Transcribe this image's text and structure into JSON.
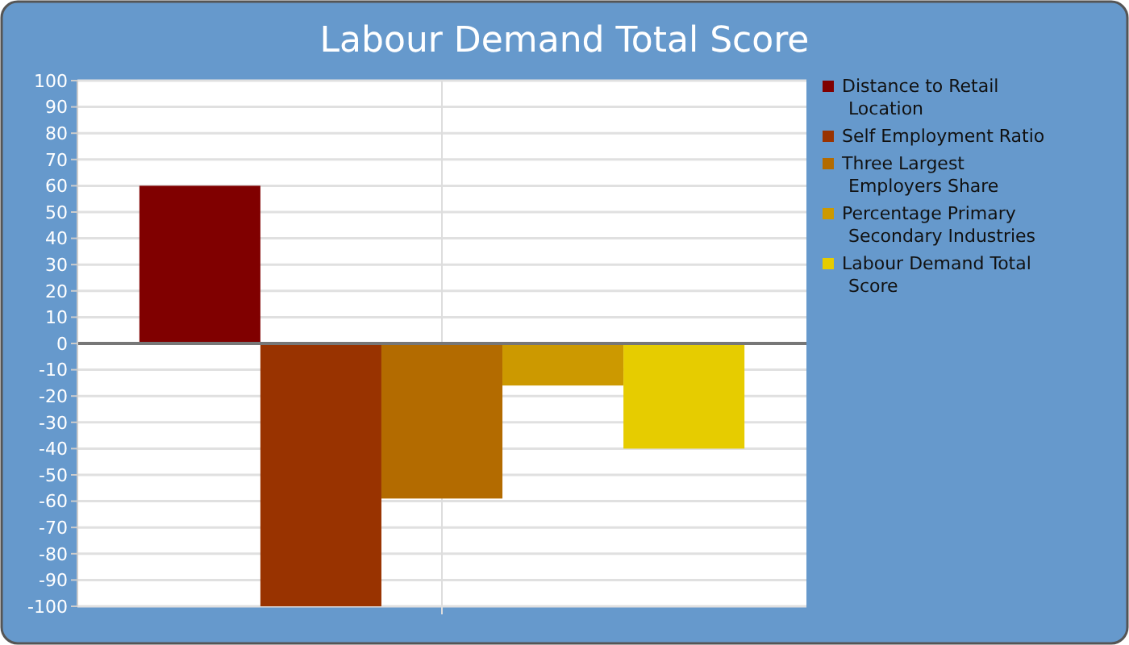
{
  "chart_data": {
    "type": "bar",
    "title": "Labour Demand Total Score",
    "categories": [
      null
    ],
    "series": [
      {
        "name": "Distance to Retail Location",
        "color": "#800000",
        "values": [
          60
        ]
      },
      {
        "name": "Self Employment Ratio",
        "color": "#993300",
        "values": [
          -100
        ]
      },
      {
        "name": "Three Largest Employers Share",
        "color": "#b36b00",
        "values": [
          -59
        ]
      },
      {
        "name": "Percentage Primary Secondary Industries",
        "color": "#cc9900",
        "values": [
          -16
        ]
      },
      {
        "name": "Labour Demand Total Score",
        "color": "#e6cc00",
        "values": [
          -40
        ]
      }
    ],
    "ylim": [
      -100,
      100
    ],
    "yticks": [
      -100,
      -90,
      -80,
      -70,
      -60,
      -50,
      -40,
      -30,
      -20,
      -10,
      0,
      10,
      20,
      30,
      40,
      50,
      60,
      70,
      80,
      90,
      100
    ],
    "grid": true,
    "legend": "right"
  }
}
